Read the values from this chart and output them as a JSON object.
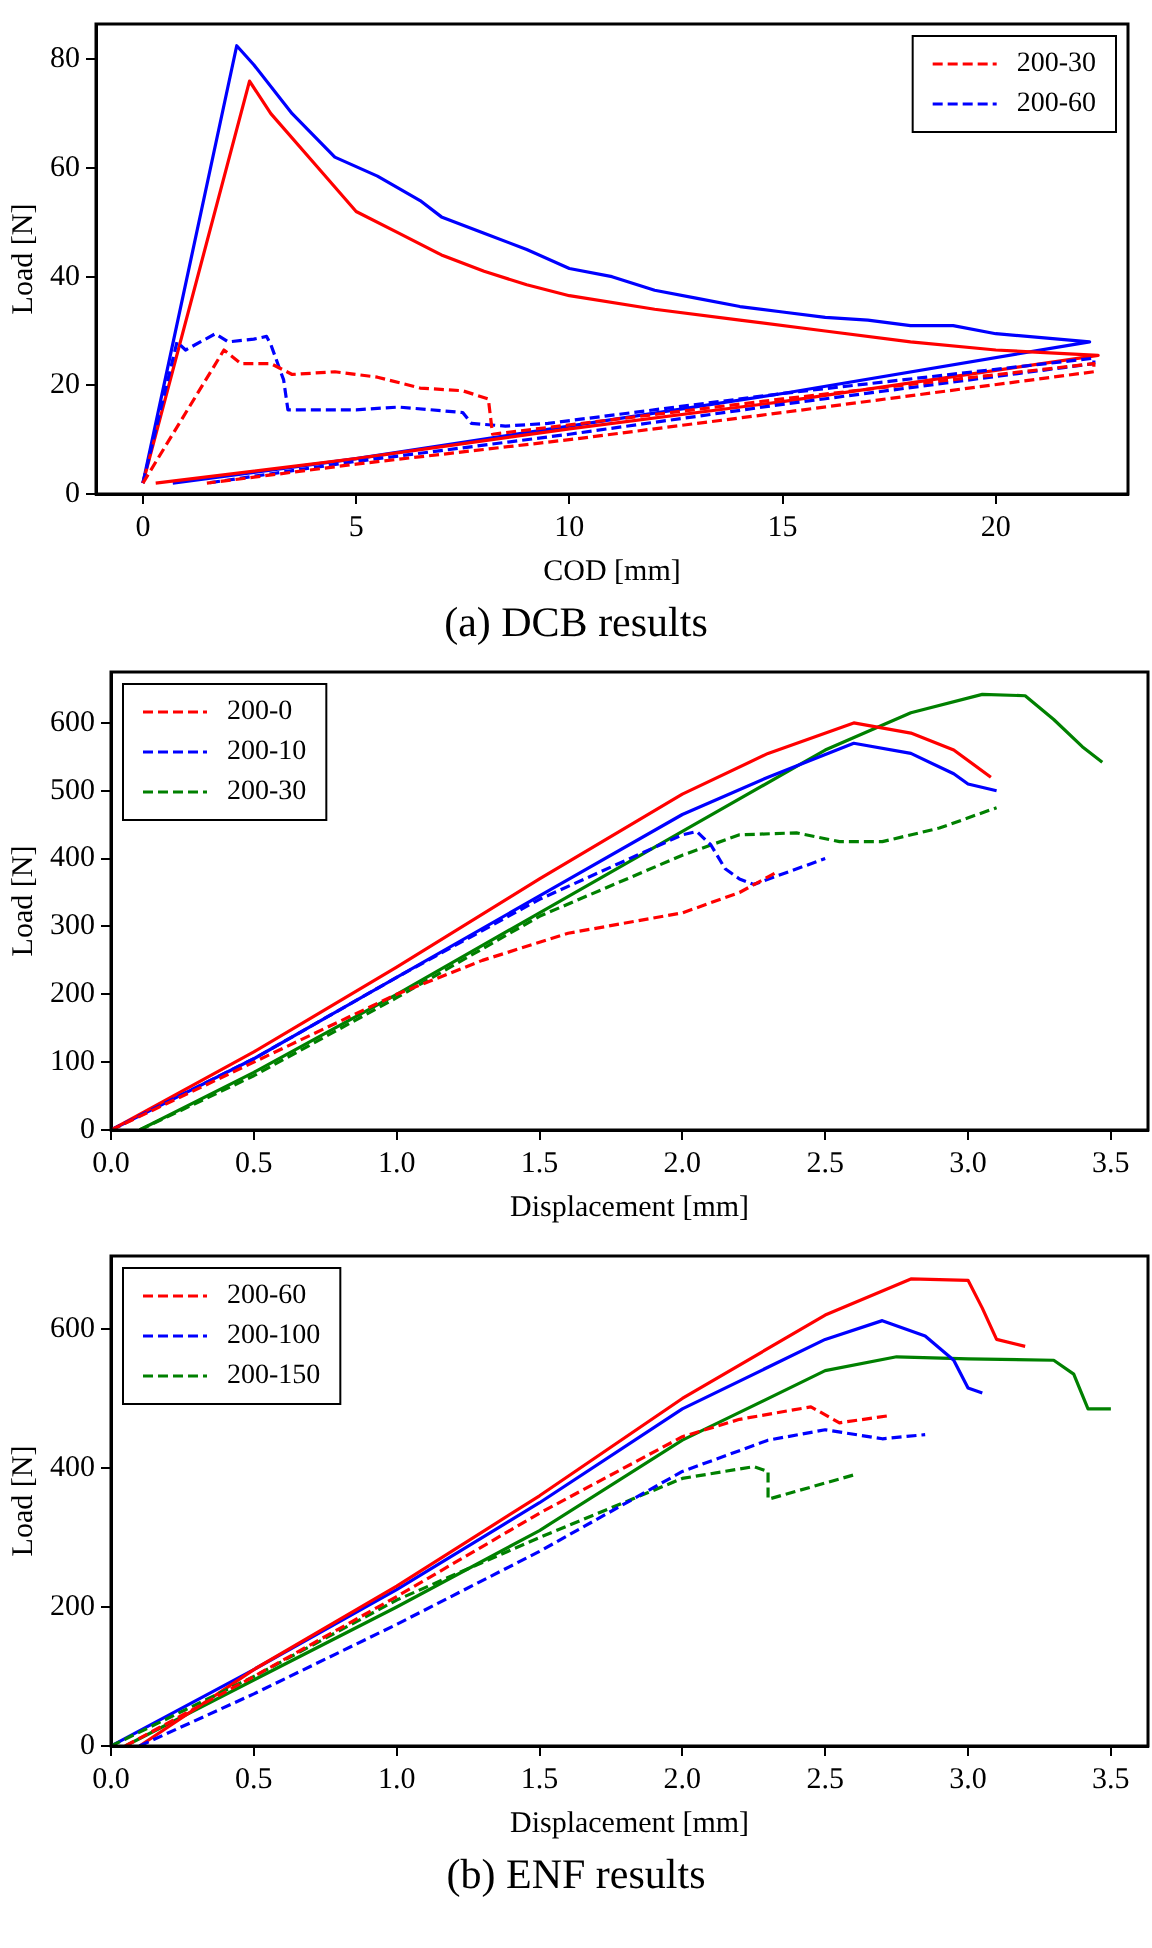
{
  "chart_data": [
    {
      "type": "line",
      "xlabel": "COD [mm]",
      "ylabel": "Load [N]",
      "xlim": [
        -1.1,
        23.1
      ],
      "ylim": [
        0,
        86.5
      ],
      "xticks": [
        0,
        5,
        10,
        15,
        20
      ],
      "yticks": [
        0,
        20,
        40,
        60,
        80
      ],
      "legend": "top right",
      "annotations": [
        "(a) DCB results"
      ],
      "series": [
        {
          "name": "200-30",
          "color": "#ff0000",
          "line_style": "dashed",
          "x": [
            0,
            1.9,
            2.3,
            3,
            3.5,
            4.5,
            5.5,
            6.5,
            7.5,
            8.1,
            8.2,
            15,
            22.3,
            22.3,
            15,
            10,
            5,
            1.5
          ],
          "values": [
            2,
            26.5,
            24,
            24,
            22,
            22.5,
            21.5,
            19.5,
            19,
            17.5,
            11,
            17.5,
            24,
            22.5,
            15,
            10,
            5.5,
            2
          ]
        },
        {
          "name": "200-60",
          "color": "#0000ff",
          "line_style": "dashed",
          "x": [
            0,
            0.8,
            1,
            1.7,
            2,
            2.6,
            2.9,
            3,
            3.3,
            3.4,
            5,
            6,
            7.5,
            7.7,
            8.5,
            9.5,
            15,
            22.3,
            22.3,
            15,
            10,
            5,
            1.5
          ],
          "values": [
            2,
            28,
            26.5,
            29.5,
            28,
            28.5,
            29,
            27.5,
            21,
            15.5,
            15.5,
            16,
            15,
            13,
            12.5,
            13,
            18.5,
            25,
            24,
            16.5,
            11,
            6,
            2
          ]
        },
        {
          "color": "#ff0000",
          "line_style": "solid",
          "x": [
            0,
            2.5,
            3,
            4,
            5,
            6,
            7,
            8,
            9,
            10,
            12,
            14,
            16,
            18,
            20,
            22.4,
            15,
            10,
            5,
            0.3
          ],
          "values": [
            2,
            76,
            70,
            61,
            52,
            48,
            44,
            41,
            38.5,
            36.5,
            34,
            32,
            30,
            28,
            26.5,
            25.5,
            17,
            12,
            6.5,
            2
          ]
        },
        {
          "color": "#0000ff",
          "line_style": "solid",
          "x": [
            0,
            2.2,
            2.6,
            3.5,
            4.5,
            5.5,
            6.5,
            7,
            8,
            9,
            10,
            11,
            12,
            13,
            14,
            15,
            16,
            17,
            18,
            19,
            20,
            22.2,
            15,
            10,
            5,
            0.7
          ],
          "values": [
            2,
            82.5,
            79,
            70,
            62,
            58.5,
            54,
            51,
            48,
            45,
            41.5,
            40,
            37.5,
            36,
            34.5,
            33.5,
            32.5,
            32,
            31,
            31,
            29.5,
            28,
            18.5,
            12.5,
            6.5,
            2
          ]
        }
      ]
    },
    {
      "type": "line",
      "xlabel": "Displacement [mm]",
      "ylabel": "Load [N]",
      "xlim": [
        0,
        3.63
      ],
      "ylim": [
        0,
        675
      ],
      "xticks": [
        {
          "value": 0,
          "label": "0.0"
        },
        0.5,
        {
          "value": 1,
          "label": "1.0"
        },
        1.5,
        {
          "value": 2,
          "label": "2.0"
        },
        2.5,
        {
          "value": 3,
          "label": "3.0"
        },
        3.5
      ],
      "yticks": [
        0,
        100,
        200,
        300,
        400,
        500,
        600
      ],
      "legend": "top left",
      "series": [
        {
          "name": "200-0",
          "color": "#ff0000",
          "line_style": "dashed",
          "x": [
            0,
            0.5,
            1,
            1.3,
            1.6,
            2,
            2.2,
            2.33
          ],
          "values": [
            0,
            100,
            200,
            250,
            290,
            320,
            350,
            380
          ]
        },
        {
          "name": "200-10",
          "color": "#0000ff",
          "line_style": "dashed",
          "x": [
            0,
            0.5,
            1,
            1.5,
            2,
            2.05,
            2.1,
            2.15,
            2.2,
            2.25,
            2.5
          ],
          "values": [
            0,
            105,
            225,
            340,
            435,
            440,
            420,
            385,
            370,
            362,
            400
          ]
        },
        {
          "name": "200-30",
          "color": "#008000",
          "line_style": "dashed",
          "x": [
            0.1,
            0.5,
            1,
            1.5,
            2,
            2.2,
            2.4,
            2.55,
            2.7,
            2.9,
            3.1
          ],
          "values": [
            0,
            80,
            195,
            315,
            405,
            435,
            438,
            425,
            425,
            445,
            475
          ]
        },
        {
          "color": "#ff0000",
          "line_style": "solid",
          "x": [
            0,
            0.5,
            1,
            1.5,
            2,
            2.3,
            2.6,
            2.8,
            2.95,
            3.08
          ],
          "values": [
            0,
            115,
            240,
            370,
            495,
            555,
            600,
            585,
            560,
            520
          ]
        },
        {
          "color": "#0000ff",
          "line_style": "solid",
          "x": [
            0,
            0.5,
            1,
            1.5,
            2,
            2.3,
            2.6,
            2.8,
            2.95,
            3,
            3.1
          ],
          "values": [
            0,
            105,
            225,
            345,
            465,
            520,
            570,
            555,
            525,
            510,
            500
          ]
        },
        {
          "color": "#008000",
          "line_style": "solid",
          "x": [
            0.1,
            0.5,
            1,
            1.5,
            2,
            2.5,
            2.8,
            3.05,
            3.2,
            3.3,
            3.4,
            3.47
          ],
          "values": [
            0,
            85,
            200,
            320,
            440,
            560,
            615,
            642,
            640,
            605,
            565,
            542
          ]
        }
      ]
    },
    {
      "type": "line",
      "xlabel": "Displacement [mm]",
      "ylabel": "Load [N]",
      "xlim": [
        0,
        3.63
      ],
      "ylim": [
        0,
        705
      ],
      "xticks": [
        {
          "value": 0,
          "label": "0.0"
        },
        0.5,
        {
          "value": 1,
          "label": "1.0"
        },
        1.5,
        {
          "value": 2,
          "label": "2.0"
        },
        2.5,
        {
          "value": 3,
          "label": "3.0"
        },
        3.5
      ],
      "yticks": [
        0,
        200,
        400,
        600
      ],
      "legend": "top left",
      "annotations": [
        "(b) ENF results"
      ],
      "series": [
        {
          "name": "200-60",
          "color": "#ff0000",
          "line_style": "dashed",
          "x": [
            0.05,
            0.5,
            1,
            1.5,
            2,
            2.2,
            2.45,
            2.55,
            2.72
          ],
          "values": [
            0,
            100,
            215,
            335,
            445,
            470,
            488,
            465,
            475
          ]
        },
        {
          "name": "200-100",
          "color": "#0000ff",
          "line_style": "dashed",
          "x": [
            0.1,
            0.5,
            1,
            1.5,
            2,
            2.3,
            2.5,
            2.7,
            2.85
          ],
          "values": [
            0,
            75,
            175,
            280,
            395,
            440,
            455,
            442,
            448
          ]
        },
        {
          "name": "200-150",
          "color": "#008000",
          "line_style": "dashed",
          "x": [
            0,
            0.5,
            1,
            1.5,
            2,
            2.25,
            2.3,
            2.3,
            2.6
          ],
          "values": [
            0,
            100,
            210,
            300,
            385,
            402,
            395,
            355,
            390
          ]
        },
        {
          "color": "#ff0000",
          "line_style": "solid",
          "x": [
            0.1,
            0.5,
            1,
            1.5,
            2,
            2.5,
            2.8,
            3,
            3.05,
            3.1,
            3.2
          ],
          "values": [
            0,
            110,
            230,
            360,
            500,
            620,
            672,
            670,
            630,
            585,
            575
          ]
        },
        {
          "color": "#0000ff",
          "line_style": "solid",
          "x": [
            0,
            0.5,
            1,
            1.5,
            2,
            2.5,
            2.7,
            2.85,
            2.95,
            3,
            3.05
          ],
          "values": [
            0,
            110,
            225,
            350,
            485,
            585,
            612,
            590,
            555,
            515,
            508
          ]
        },
        {
          "color": "#008000",
          "line_style": "solid",
          "x": [
            0.05,
            0.5,
            1,
            1.5,
            2,
            2.5,
            2.75,
            3,
            3.3,
            3.37,
            3.42,
            3.5
          ],
          "values": [
            0,
            95,
            200,
            310,
            440,
            540,
            560,
            557,
            555,
            535,
            485,
            485
          ]
        }
      ]
    }
  ]
}
